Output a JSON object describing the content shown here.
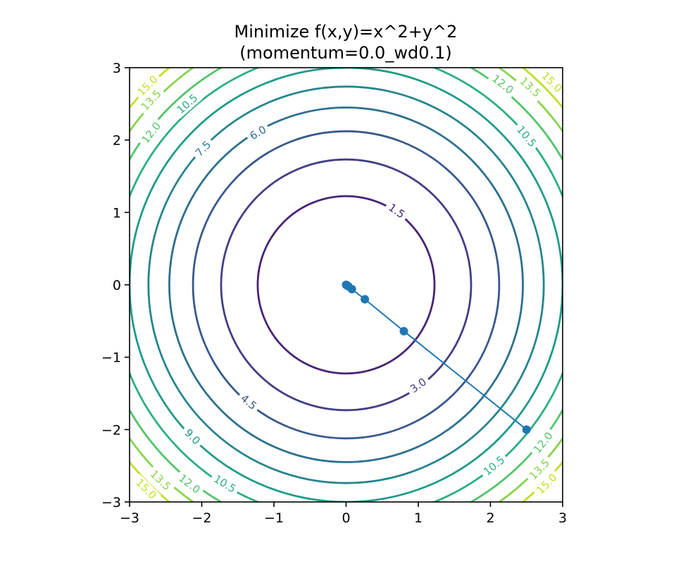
{
  "chart_data": {
    "type": "line",
    "title": "Minimize f(x,y)=x^2+y^2",
    "subtitle": "(momentum=0.0_wd0.1)",
    "xlabel": "",
    "ylabel": "",
    "xlim": [
      -3,
      3
    ],
    "ylim": [
      -3,
      3
    ],
    "x_ticks": [
      "−3",
      "−2",
      "−1",
      "0",
      "1",
      "2",
      "3"
    ],
    "y_ticks": [
      "−3",
      "−2",
      "−1",
      "0",
      "1",
      "2",
      "3"
    ],
    "grid": false,
    "contour_levels": [
      {
        "level": 1.5,
        "label": "1.5",
        "color": "#482475"
      },
      {
        "level": 3.0,
        "label": "3.0",
        "color": "#433e85"
      },
      {
        "level": 4.5,
        "label": "4.5",
        "color": "#38588c"
      },
      {
        "level": 6.0,
        "label": "6.0",
        "color": "#2d708e"
      },
      {
        "level": 7.5,
        "label": "7.5",
        "color": "#25858e"
      },
      {
        "level": 9.0,
        "label": "9.0",
        "color": "#1e9b8a"
      },
      {
        "level": 10.5,
        "label": "10.5",
        "color": "#2ab07f"
      },
      {
        "level": 12.0,
        "label": "12.0",
        "color": "#52c569"
      },
      {
        "level": 13.5,
        "label": "13.5",
        "color": "#86d549"
      },
      {
        "level": 15.0,
        "label": "15.0",
        "color": "#c2df23"
      }
    ],
    "contour_labels": [
      {
        "text": "1.5",
        "x": 0.7,
        "y": 1.02
      },
      {
        "text": "3.0",
        "x": 1.0,
        "y": -1.39
      },
      {
        "text": "4.5",
        "x": -1.35,
        "y": -1.62
      },
      {
        "text": "6.0",
        "x": -1.22,
        "y": 2.1
      },
      {
        "text": "7.5",
        "x": -1.98,
        "y": 1.88
      },
      {
        "text": "9.0",
        "x": -2.13,
        "y": -2.1
      },
      {
        "text": "10.5",
        "x": -2.2,
        "y": 2.5
      },
      {
        "text": "10.5",
        "x": 2.5,
        "y": 2.05
      },
      {
        "text": "10.5",
        "x": 2.05,
        "y": -2.5
      },
      {
        "text": "10.5",
        "x": -1.68,
        "y": -2.75
      },
      {
        "text": "12.0",
        "x": -2.7,
        "y": 2.1
      },
      {
        "text": "12.0",
        "x": 2.17,
        "y": 2.77
      },
      {
        "text": "12.0",
        "x": 2.73,
        "y": -2.18
      },
      {
        "text": "12.0",
        "x": -2.17,
        "y": -2.75
      },
      {
        "text": "13.5",
        "x": -2.7,
        "y": 2.55
      },
      {
        "text": "13.5",
        "x": 2.55,
        "y": 2.73
      },
      {
        "text": "13.5",
        "x": 2.68,
        "y": -2.55
      },
      {
        "text": "13.5",
        "x": -2.57,
        "y": -2.7
      },
      {
        "text": "15.0",
        "x": -2.75,
        "y": 2.75
      },
      {
        "text": "15.0",
        "x": 2.85,
        "y": 2.8
      },
      {
        "text": "15.0",
        "x": 2.78,
        "y": -2.75
      },
      {
        "text": "15.0",
        "x": -2.77,
        "y": -2.82
      }
    ],
    "series": [
      {
        "color": "#1f77b4",
        "x": [
          2.5,
          0.8,
          0.26,
          0.08,
          0.03,
          0.01,
          0.0
        ],
        "y": [
          -2.0,
          -0.64,
          -0.2,
          -0.06,
          -0.02,
          -0.006,
          0.0
        ]
      }
    ]
  }
}
